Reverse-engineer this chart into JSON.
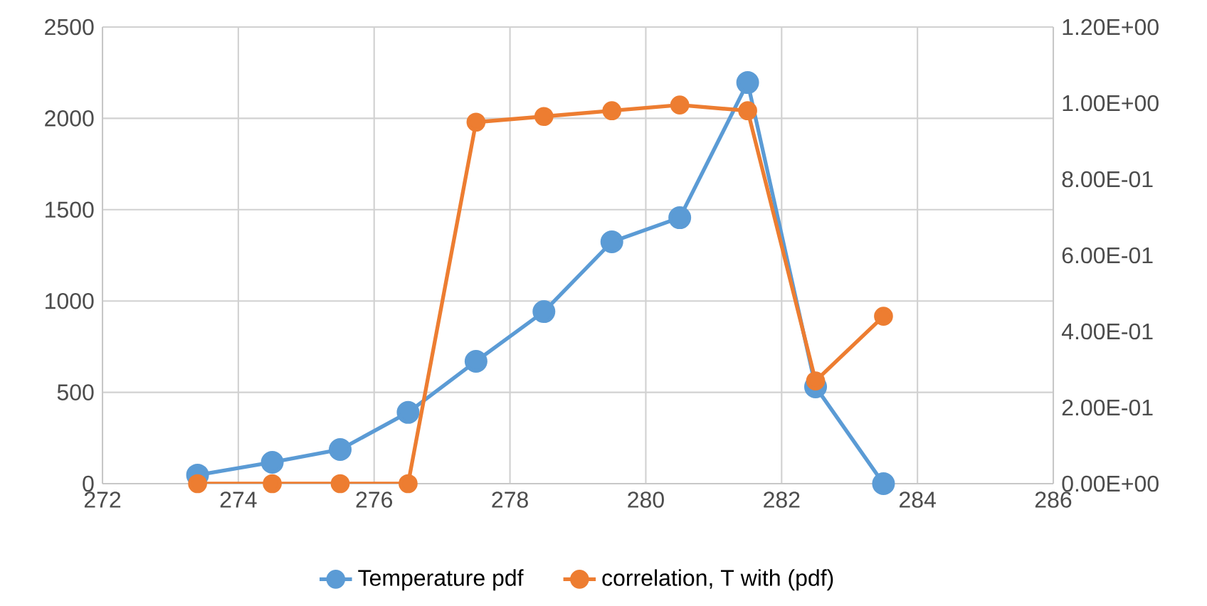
{
  "chart_data": {
    "type": "line",
    "x": [
      273.4,
      274.5,
      275.5,
      276.5,
      277.5,
      278.5,
      279.5,
      280.5,
      281.5,
      282.5,
      283.5
    ],
    "series": [
      {
        "name": "Temperature pdf",
        "color": "#5b9bd5",
        "values": [
          47,
          117,
          187,
          390,
          670,
          942,
          1324,
          1456,
          2196,
          530,
          0
        ]
      },
      {
        "name": "correlation, T with (pdf)",
        "color": "#ed7d31",
        "axis": "y2",
        "values": [
          0,
          0,
          0,
          0,
          0.95,
          0.965,
          0.98,
          0.995,
          0.98,
          0.27,
          0.44
        ]
      }
    ],
    "xlim": [
      272,
      286
    ],
    "xticks": [
      272,
      274,
      276,
      278,
      280,
      282,
      284,
      286
    ],
    "ylim": [
      0,
      2500
    ],
    "yticks": [
      0,
      500,
      1000,
      1500,
      2000,
      2500
    ],
    "y2lim": [
      0,
      1.2
    ],
    "y2ticks": [
      {
        "value": 0,
        "label": "0.00E+00"
      },
      {
        "value": 0.2,
        "label": "2.00E-01"
      },
      {
        "value": 0.4,
        "label": "4.00E-01"
      },
      {
        "value": 0.6,
        "label": "6.00E-01"
      },
      {
        "value": 0.8,
        "label": "8.00E-01"
      },
      {
        "value": 1.0,
        "label": "1.00E+00"
      },
      {
        "value": 1.2,
        "label": "1.20E+00"
      }
    ],
    "grid": true,
    "legend": "bottom",
    "marker": "circle",
    "line_style": "solid"
  }
}
